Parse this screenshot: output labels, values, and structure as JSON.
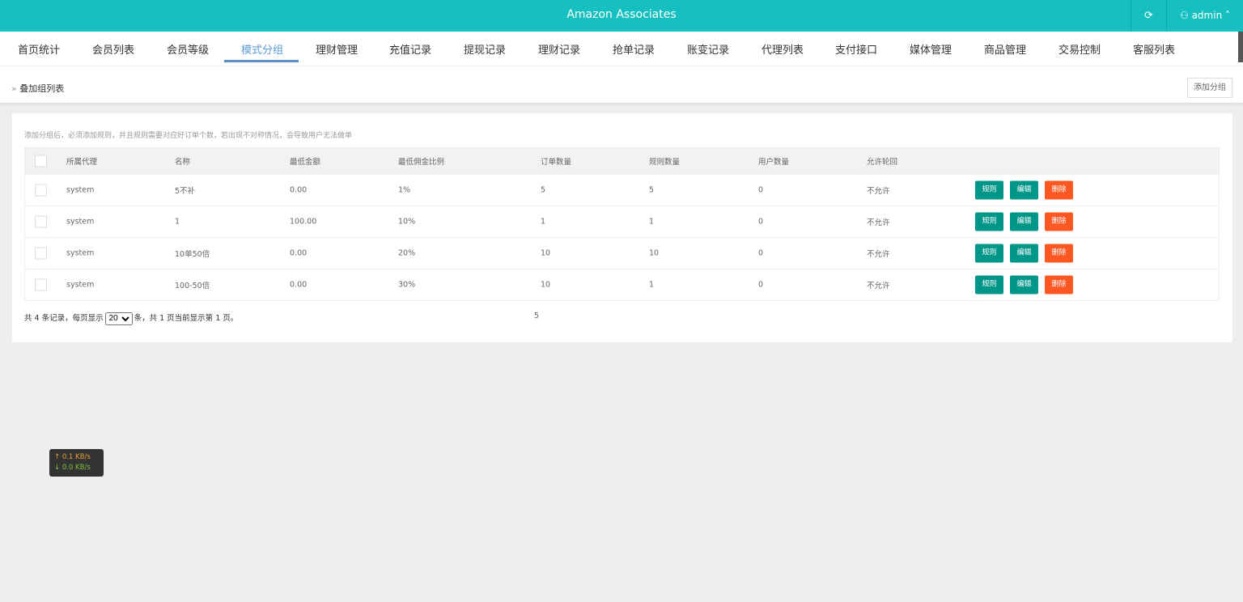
{
  "header": {
    "title": "Amazon Associates",
    "user": "admin",
    "refresh_icon": "refresh-icon",
    "user_icon": "user-icon"
  },
  "nav": {
    "items": [
      "首页统计",
      "会员列表",
      "会员等级",
      "模式分组",
      "理财管理",
      "充值记录",
      "提现记录",
      "理财记录",
      "抢单记录",
      "账变记录",
      "代理列表",
      "支付接口",
      "媒体管理",
      "商品管理",
      "交易控制",
      "客服列表"
    ],
    "active": "模式分组"
  },
  "breadcrumb": {
    "label": "叠加组列表",
    "add_button": "添加分组"
  },
  "panel": {
    "tip": "添加分组后，必须添加规则，并且规则需要对应好订单个数，若出现不对称情况，会导致用户无法做单",
    "columns": [
      "所属代理",
      "名称",
      "最低金额",
      "最低佣金比例",
      "订单数量",
      "规则数量",
      "用户数量",
      "允许轮回"
    ],
    "rows": [
      {
        "agent": "system",
        "name": "5不补",
        "min_amount": "0.00",
        "min_rate": "1%",
        "orders": "5",
        "rules": "5",
        "users": "0",
        "cycle": "不允许"
      },
      {
        "agent": "system",
        "name": "1",
        "min_amount": "100.00",
        "min_rate": "10%",
        "orders": "1",
        "rules": "1",
        "users": "0",
        "cycle": "不允许"
      },
      {
        "agent": "system",
        "name": "10单50倍",
        "min_amount": "0.00",
        "min_rate": "20%",
        "orders": "10",
        "rules": "10",
        "users": "0",
        "cycle": "不允许"
      },
      {
        "agent": "system",
        "name": "100-50倍",
        "min_amount": "0.00",
        "min_rate": "30%",
        "orders": "10",
        "rules": "1",
        "users": "0",
        "cycle": "不允许"
      }
    ],
    "actions": {
      "rules": "规则",
      "edit": "编辑",
      "delete": "删除"
    },
    "colors": {
      "green": "#009688",
      "red": "#ff5722",
      "accent": "#17c0c0"
    },
    "footer": {
      "prefix": "共 4 条记录，每页显示",
      "page_size": "20",
      "suffix": "条，共 1 页当前显示第 1 页。"
    },
    "stray_value": "5"
  },
  "netspeed": {
    "up": "↑ 0.1 KB/s",
    "down": "↓ 0.0 KB/s"
  }
}
